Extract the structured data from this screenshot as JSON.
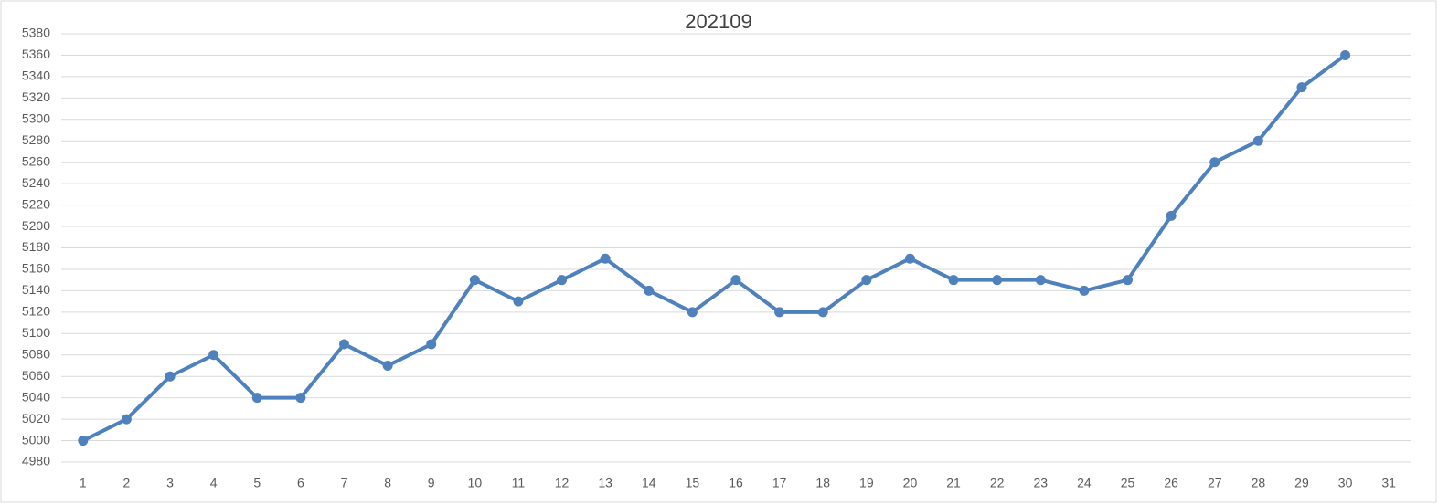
{
  "chart_data": {
    "type": "line",
    "title": "202109",
    "categories": [
      "1",
      "2",
      "3",
      "4",
      "5",
      "6",
      "7",
      "8",
      "9",
      "10",
      "11",
      "12",
      "13",
      "14",
      "15",
      "16",
      "17",
      "18",
      "19",
      "20",
      "21",
      "22",
      "23",
      "24",
      "25",
      "26",
      "27",
      "28",
      "29",
      "30",
      "31"
    ],
    "values": [
      5000,
      5020,
      5060,
      5080,
      5040,
      5040,
      5090,
      5070,
      5090,
      5150,
      5130,
      5150,
      5170,
      5140,
      5120,
      5150,
      5120,
      5120,
      5150,
      5170,
      5150,
      5150,
      5150,
      5140,
      5150,
      5210,
      5260,
      5280,
      5330,
      5360,
      null
    ],
    "color": "#4f81bd",
    "ylim": [
      4980,
      5380
    ],
    "yticks": [
      4980,
      5000,
      5020,
      5040,
      5060,
      5080,
      5100,
      5120,
      5140,
      5160,
      5180,
      5200,
      5220,
      5240,
      5260,
      5280,
      5300,
      5320,
      5340,
      5360,
      5380
    ],
    "grid": true
  }
}
